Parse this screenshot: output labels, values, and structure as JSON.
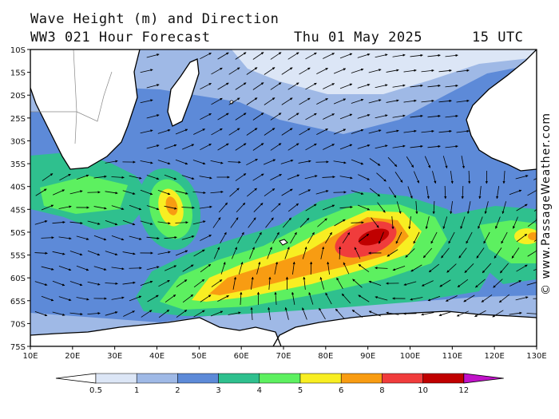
{
  "header": {
    "title": "Wave Height (m) and Direction",
    "model": "WW3 021 Hour Forecast",
    "date": "Thu 01 May 2025",
    "time": "15 UTC"
  },
  "credit": "© www.PassageWeather.com",
  "map": {
    "lon_range": [
      10,
      130
    ],
    "lat_range": [
      -75,
      -10
    ],
    "lat_labels": [
      "10S",
      "15S",
      "20S",
      "25S",
      "30S",
      "35S",
      "40S",
      "45S",
      "50S",
      "55S",
      "60S",
      "65S",
      "70S",
      "75S"
    ],
    "lon_labels": [
      "10E",
      "20E",
      "30E",
      "40E",
      "50E",
      "60E",
      "70E",
      "80E",
      "90E",
      "100E",
      "110E",
      "120E",
      "130E"
    ]
  },
  "legend": {
    "labels": [
      "0.5",
      "1",
      "2",
      "3",
      "4",
      "5",
      "6",
      "8",
      "10",
      "12"
    ],
    "colors": [
      "#ffffff",
      "#dce6f6",
      "#9fb9e6",
      "#5d8ad8",
      "#2fc08e",
      "#5df060",
      "#f8ee22",
      "#f89c12",
      "#f03c3c",
      "#c00000",
      "#c012c8"
    ]
  },
  "icons": {
    "direction": "arrow-icon"
  }
}
